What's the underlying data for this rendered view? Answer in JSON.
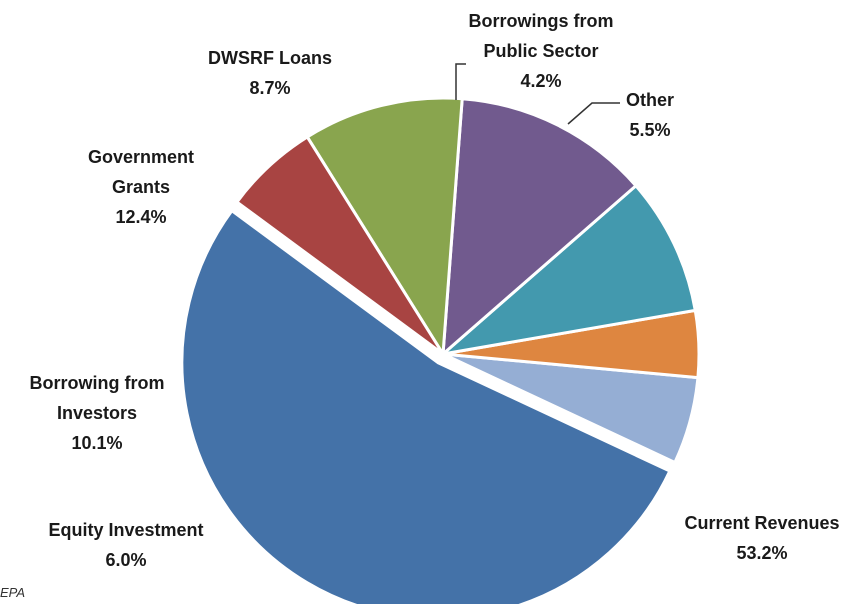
{
  "chart_data": {
    "type": "pie",
    "start_angle_deg": 143.6,
    "direction": "counterclockwise",
    "exploded_slice": "Current Revenues",
    "slices": [
      {
        "label_lines": [
          "Current Revenues"
        ],
        "value_text": "53.2%",
        "value": 53.2,
        "color": "#4472A8"
      },
      {
        "label_lines": [
          "Other"
        ],
        "value_text": "5.5%",
        "value": 5.5,
        "color": "#95AED4"
      },
      {
        "label_lines": [
          "Borrowings from",
          "Public Sector"
        ],
        "value_text": "4.2%",
        "value": 4.2,
        "color": "#DE8640"
      },
      {
        "label_lines": [
          "DWSRF Loans"
        ],
        "value_text": "8.7%",
        "value": 8.7,
        "color": "#4399AE"
      },
      {
        "label_lines": [
          "Government",
          "Grants"
        ],
        "value_text": "12.4%",
        "value": 12.4,
        "color": "#715A8E"
      },
      {
        "label_lines": [
          "Borrowing from",
          "Investors"
        ],
        "value_text": "10.1%",
        "value": 10.1,
        "color": "#89A54E"
      },
      {
        "label_lines": [
          "Equity Investment"
        ],
        "value_text": "6.0%",
        "value": 6.0,
        "color": "#A84442"
      }
    ],
    "source": "EPA"
  }
}
